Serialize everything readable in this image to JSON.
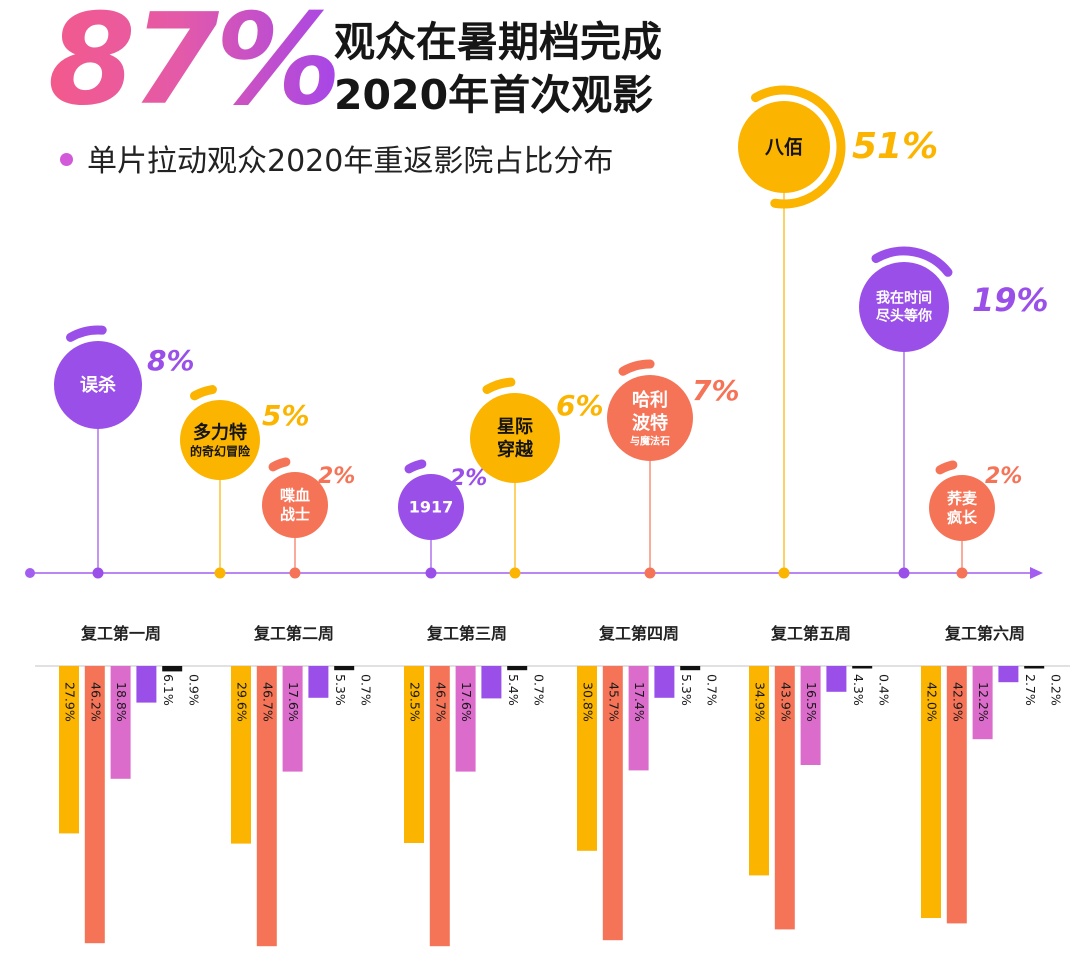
{
  "header": {
    "big_percent": "87%",
    "title_line1": "观众在暑期档完成",
    "title_line2": "2020年首次观影",
    "subtitle": "单片拉动观众2020年重返影院占比分布"
  },
  "colors": {
    "yellow": "#fbb400",
    "orange": "#f57458",
    "pink": "#dc6ccb",
    "purple": "#9a4fe9",
    "black": "#111111",
    "axis": "#a35ef0"
  },
  "chart_data": [
    {
      "type": "timeline-bubbles",
      "title": "单片拉动观众2020年重返影院占比分布",
      "films": [
        {
          "name_lines": [
            "误杀"
          ],
          "percent": 8,
          "label": "8%",
          "color": "purple"
        },
        {
          "name_lines": [
            "多力特",
            "的奇幻冒险"
          ],
          "percent": 5,
          "label": "5%",
          "color": "yellow"
        },
        {
          "name_lines": [
            "喋血",
            "战士"
          ],
          "percent": 2,
          "label": "2%",
          "color": "orange"
        },
        {
          "name_lines": [
            "1917"
          ],
          "percent": 2,
          "label": "2%",
          "color": "purple"
        },
        {
          "name_lines": [
            "星际",
            "穿越"
          ],
          "percent": 6,
          "label": "6%",
          "color": "yellow"
        },
        {
          "name_lines": [
            "哈利",
            "波特",
            "与魔法石"
          ],
          "percent": 7,
          "label": "7%",
          "color": "orange"
        },
        {
          "name_lines": [
            "八佰"
          ],
          "percent": 51,
          "label": "51%",
          "color": "yellow"
        },
        {
          "name_lines": [
            "我在时间",
            "尽头等你"
          ],
          "percent": 19,
          "label": "19%",
          "color": "purple"
        },
        {
          "name_lines": [
            "荞麦",
            "疯长"
          ],
          "percent": 2,
          "label": "2%",
          "color": "orange"
        }
      ]
    },
    {
      "type": "bar",
      "orientation": "downward",
      "categories": [
        "复工第一周",
        "复工第二周",
        "复工第三周",
        "复工第四周",
        "复工第五周",
        "复工第六周"
      ],
      "series_colors": [
        "yellow",
        "orange",
        "pink",
        "purple",
        "black"
      ],
      "values": [
        [
          27.9,
          46.2,
          18.8,
          6.1,
          0.9
        ],
        [
          29.6,
          46.7,
          17.6,
          5.3,
          0.7
        ],
        [
          29.5,
          46.7,
          17.6,
          5.4,
          0.7
        ],
        [
          30.8,
          45.7,
          17.4,
          5.3,
          0.7
        ],
        [
          34.9,
          43.9,
          16.5,
          4.3,
          0.4
        ],
        [
          42.0,
          42.9,
          12.2,
          2.7,
          0.2
        ]
      ],
      "labels": [
        [
          "27.9%",
          "46.2%",
          "18.8%",
          "6.1%",
          "0.9%"
        ],
        [
          "29.6%",
          "46.7%",
          "17.6%",
          "5.3%",
          "0.7%"
        ],
        [
          "29.5%",
          "46.7%",
          "17.6%",
          "5.4%",
          "0.7%"
        ],
        [
          "30.8%",
          "45.7%",
          "17.4%",
          "5.3%",
          "0.7%"
        ],
        [
          "34.9%",
          "43.9%",
          "16.5%",
          "4.3%",
          "0.4%"
        ],
        [
          "42.0%",
          "42.9%",
          "12.2%",
          "2.7%",
          "0.2%"
        ]
      ]
    }
  ]
}
